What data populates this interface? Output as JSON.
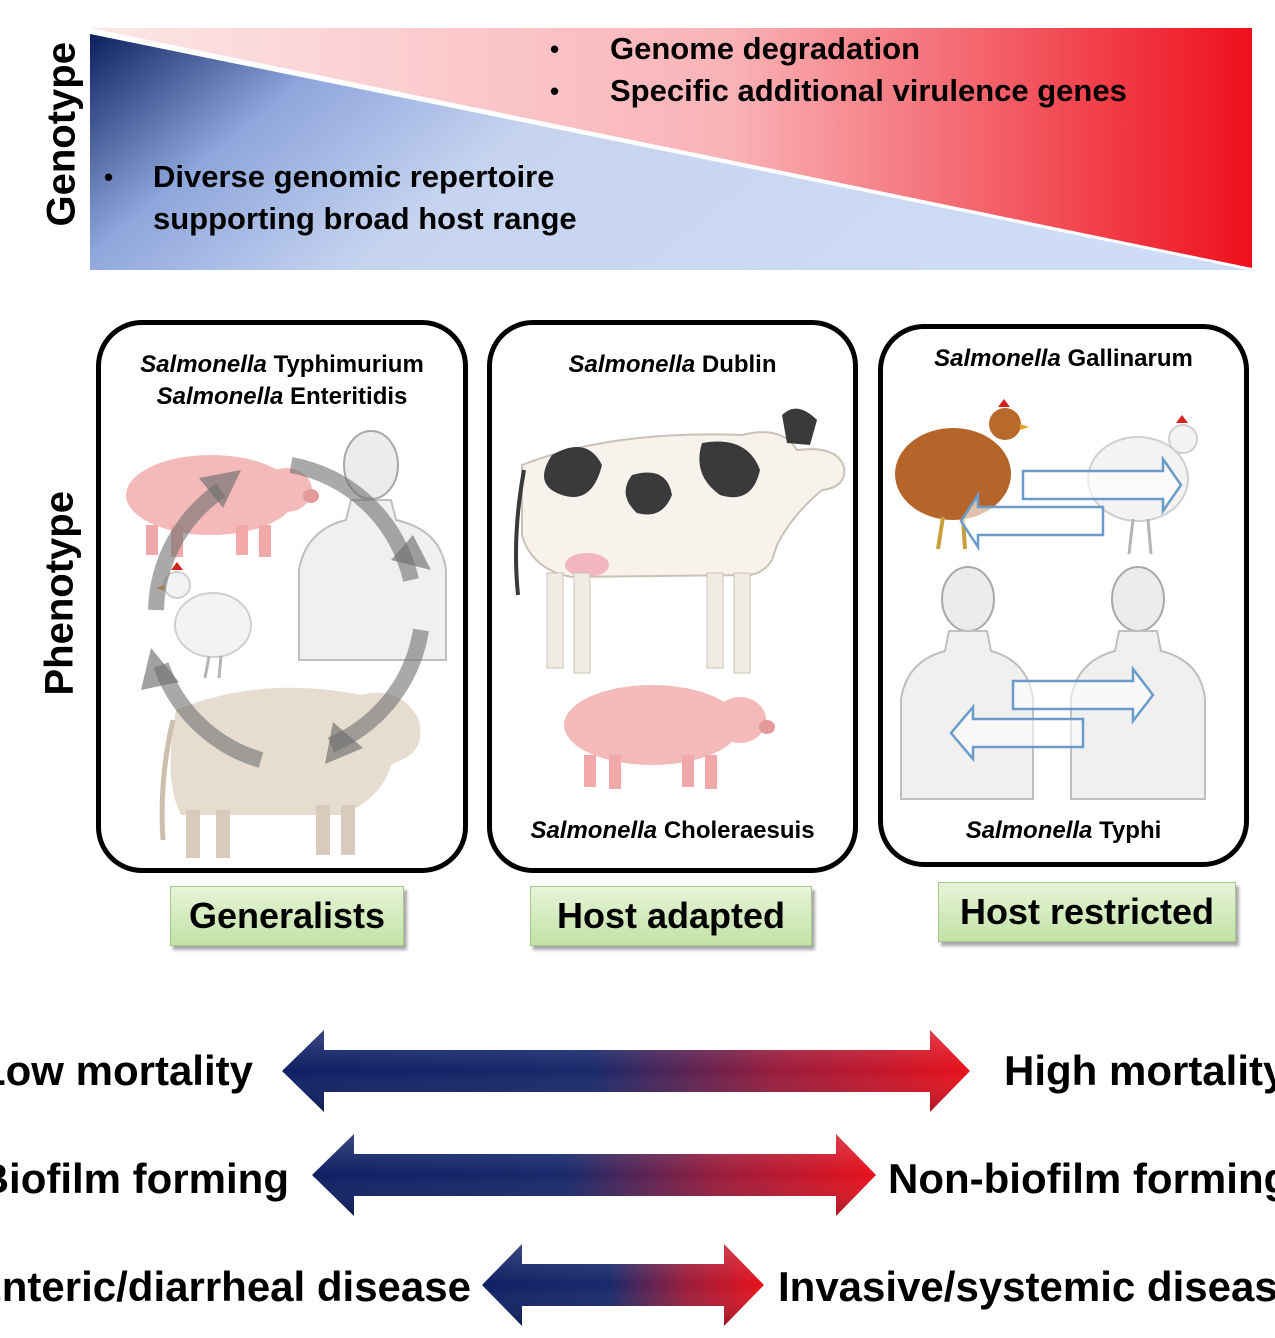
{
  "genotype": {
    "axis_label": "Genotype",
    "red_bullets": [
      "Genome degradation",
      "Specific additional virulence genes"
    ],
    "blue_bullet_lines": [
      "Diverse genomic repertoire",
      "supporting broad host range"
    ],
    "bullet_symbol": "•",
    "colors": {
      "navy": "#0b1f5e",
      "light_blue": "#c6d4f0",
      "red": "#ee0f1c",
      "light_pink": "#fbd6d8"
    }
  },
  "phenotype": {
    "axis_label": "Phenotype",
    "panels": [
      {
        "species": [
          {
            "genus": "Salmonella",
            "serovar": "Typhimurium"
          },
          {
            "genus": "Salmonella",
            "serovar": "Enteritidis"
          }
        ],
        "hosts": [
          "pig",
          "human",
          "chicken",
          "cow"
        ],
        "category": "Generalists"
      },
      {
        "species": [
          {
            "genus": "Salmonella",
            "serovar": "Dublin"
          },
          {
            "genus": "Salmonella",
            "serovar": "Choleraesuis"
          }
        ],
        "hosts": [
          "cow",
          "pig"
        ],
        "category": "Host adapted"
      },
      {
        "species": [
          {
            "genus": "Salmonella",
            "serovar": "Gallinarum"
          },
          {
            "genus": "Salmonella",
            "serovar": "Typhi"
          }
        ],
        "hosts": [
          "chicken",
          "chicken",
          "human",
          "human"
        ],
        "category": "Host restricted"
      }
    ]
  },
  "traits": [
    {
      "left": "Low mortality",
      "right": "High mortality"
    },
    {
      "left": "Biofilm forming",
      "right": "Non-biofilm forming"
    },
    {
      "left": "Enteric/diarrheal disease",
      "right": "Invasive/systemic disease"
    }
  ],
  "arrow_colors": {
    "left": "#0e1f63",
    "right": "#e8111c"
  }
}
